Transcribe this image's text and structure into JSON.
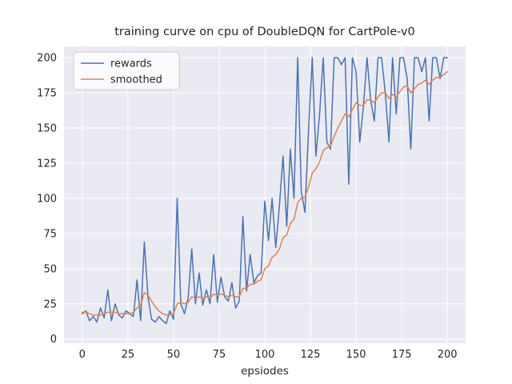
{
  "chart_data": {
    "type": "line",
    "title": "training curve on cpu of DoubleDQN for CartPole-v0",
    "xlabel": "epsiodes",
    "ylabel": "",
    "xticks": [
      0,
      25,
      50,
      75,
      100,
      125,
      150,
      175,
      200
    ],
    "yticks": [
      0,
      25,
      50,
      75,
      100,
      125,
      150,
      175,
      200
    ],
    "xlim": [
      -10,
      210
    ],
    "ylim": [
      -3,
      208
    ],
    "grid": true,
    "legend_position": "upper left",
    "plot_bg": "#eaeaf2",
    "grid_color": "#ffffff",
    "text_color": "#262626",
    "legend_border": "#cccccc",
    "x": [
      0,
      2,
      4,
      6,
      8,
      10,
      12,
      14,
      16,
      18,
      20,
      22,
      24,
      26,
      28,
      30,
      32,
      34,
      36,
      38,
      40,
      42,
      44,
      46,
      48,
      50,
      52,
      54,
      56,
      58,
      60,
      62,
      64,
      66,
      68,
      70,
      72,
      74,
      76,
      78,
      80,
      82,
      84,
      86,
      88,
      90,
      92,
      94,
      96,
      98,
      100,
      102,
      104,
      106,
      108,
      110,
      112,
      114,
      116,
      118,
      120,
      122,
      124,
      126,
      128,
      130,
      132,
      134,
      136,
      138,
      140,
      142,
      144,
      146,
      148,
      150,
      152,
      154,
      156,
      158,
      160,
      162,
      164,
      166,
      168,
      170,
      172,
      174,
      176,
      178,
      180,
      182,
      184,
      186,
      188,
      190,
      192,
      194,
      196,
      198,
      200
    ],
    "series": [
      {
        "name": "rewards",
        "color": "#4c72b0",
        "values": [
          18,
          20,
          13,
          16,
          12,
          22,
          15,
          35,
          13,
          25,
          17,
          15,
          20,
          18,
          16,
          42,
          13,
          69,
          30,
          14,
          12,
          16,
          13,
          11,
          20,
          14,
          100,
          25,
          18,
          29,
          64,
          25,
          47,
          24,
          35,
          25,
          60,
          26,
          44,
          30,
          27,
          40,
          22,
          27,
          87,
          34,
          60,
          40,
          45,
          47,
          98,
          70,
          100,
          65,
          95,
          130,
          80,
          135,
          100,
          200,
          105,
          90,
          150,
          200,
          130,
          160,
          200,
          140,
          135,
          200,
          200,
          195,
          200,
          110,
          200,
          190,
          140,
          165,
          200,
          170,
          155,
          200,
          200,
          175,
          140,
          200,
          160,
          200,
          200,
          185,
          135,
          200,
          200,
          190,
          200,
          155,
          200,
          200,
          185,
          200,
          200
        ]
      },
      {
        "name": "smoothed",
        "color": "#dd8452",
        "values": [
          19,
          19,
          18,
          17,
          17,
          17,
          18,
          19,
          19,
          19,
          18,
          18,
          18,
          18,
          19,
          22,
          24,
          33,
          31,
          27,
          23,
          20,
          18,
          17,
          17,
          18,
          25,
          26,
          25,
          26,
          30,
          29,
          30,
          29,
          30,
          29,
          32,
          31,
          32,
          31,
          30,
          31,
          30,
          30,
          36,
          36,
          39,
          39,
          41,
          42,
          50,
          52,
          58,
          60,
          64,
          72,
          74,
          82,
          85,
          97,
          100,
          101,
          108,
          118,
          121,
          126,
          134,
          136,
          137,
          144,
          150,
          155,
          160,
          158,
          163,
          168,
          166,
          166,
          170,
          170,
          168,
          172,
          175,
          175,
          171,
          174,
          172,
          176,
          179,
          180,
          175,
          178,
          181,
          182,
          184,
          181,
          184,
          186,
          186,
          188,
          190
        ]
      }
    ]
  }
}
